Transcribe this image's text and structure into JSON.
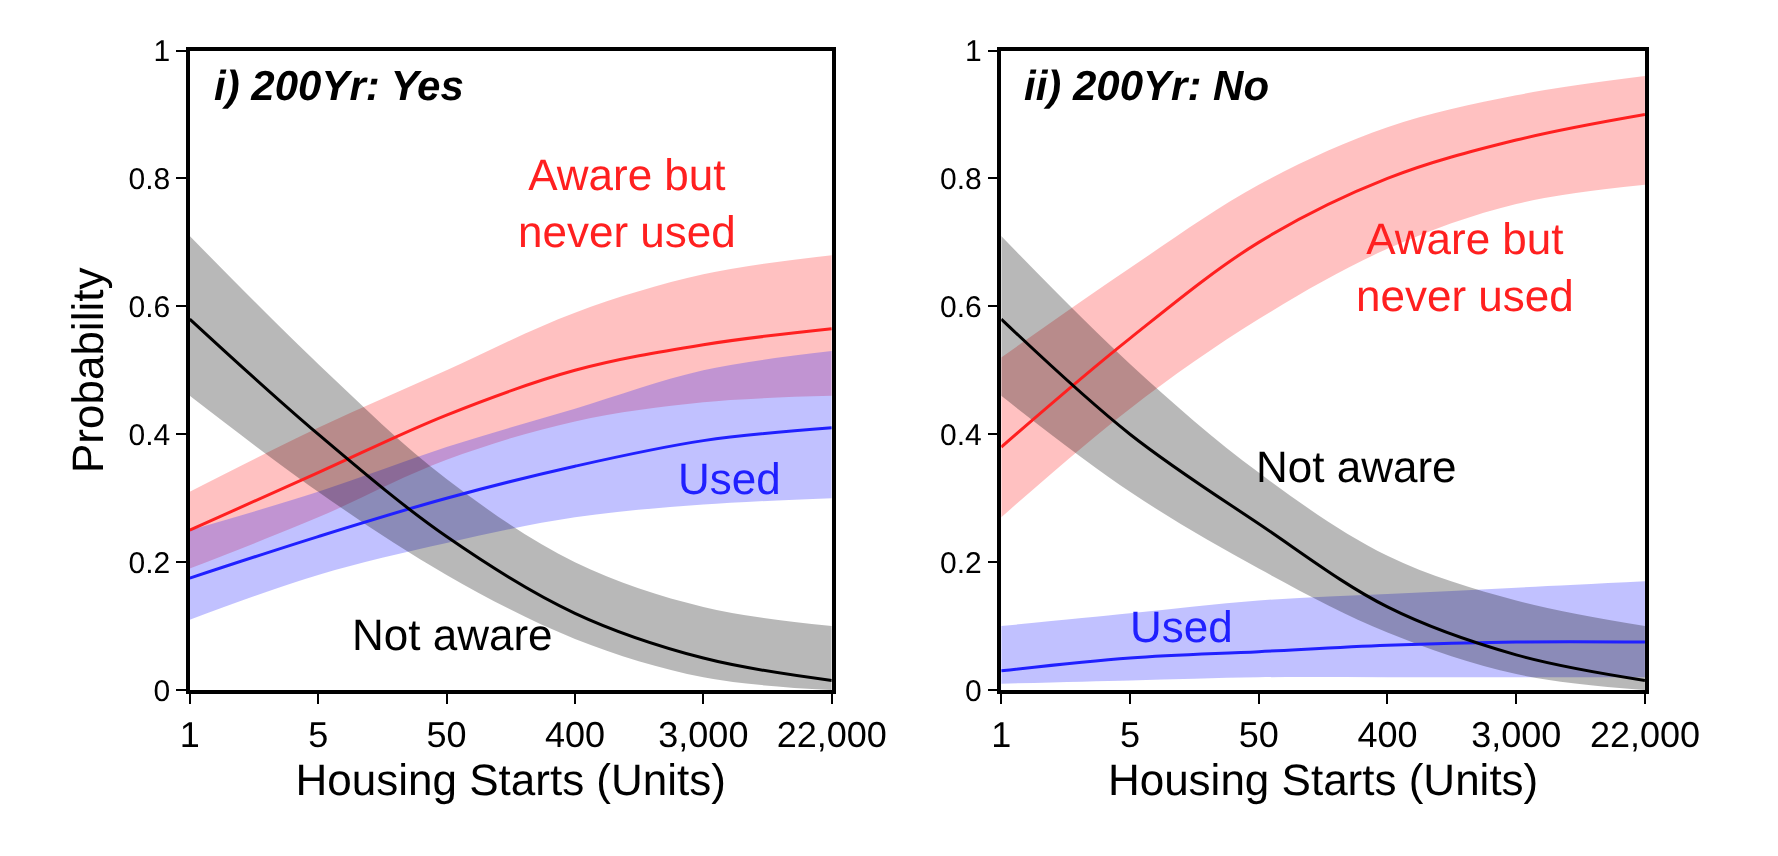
{
  "chart_data": [
    {
      "type": "line",
      "title": "i) 200Yr: Yes",
      "xlabel": "Housing Starts (Units)",
      "ylabel": "Probability",
      "categories": [
        "1",
        "5",
        "50",
        "400",
        "3,000",
        "22,000"
      ],
      "ylim": [
        0,
        1
      ],
      "yticks": [
        0,
        0.2,
        0.4,
        0.6,
        0.8,
        1
      ],
      "legend": false,
      "series": [
        {
          "name": "Aware but\nnever used",
          "color": "#ff2020",
          "values": [
            0.25,
            0.34,
            0.43,
            0.5,
            0.54,
            0.565
          ],
          "lower": [
            0.19,
            0.27,
            0.36,
            0.42,
            0.45,
            0.46
          ],
          "upper": [
            0.31,
            0.41,
            0.5,
            0.59,
            0.65,
            0.68
          ]
        },
        {
          "name": "Used",
          "color": "#2020ff",
          "values": [
            0.175,
            0.24,
            0.3,
            0.35,
            0.39,
            0.41
          ],
          "lower": [
            0.11,
            0.18,
            0.23,
            0.27,
            0.29,
            0.3
          ],
          "upper": [
            0.25,
            0.31,
            0.38,
            0.44,
            0.5,
            0.53
          ]
        },
        {
          "name": "Not aware",
          "color": "#000000",
          "values": [
            0.58,
            0.4,
            0.24,
            0.12,
            0.05,
            0.015
          ],
          "lower": [
            0.46,
            0.31,
            0.18,
            0.08,
            0.02,
            0.0
          ],
          "upper": [
            0.71,
            0.51,
            0.33,
            0.2,
            0.13,
            0.1
          ]
        }
      ]
    },
    {
      "type": "line",
      "title": "ii) 200Yr: No",
      "xlabel": "Housing Starts (Units)",
      "categories": [
        "1",
        "5",
        "50",
        "400",
        "3,000",
        "22,000"
      ],
      "ylim": [
        0,
        1
      ],
      "yticks": [
        0,
        0.2,
        0.4,
        0.6,
        0.8,
        1
      ],
      "legend": false,
      "series": [
        {
          "name": "Aware but\nnever used",
          "color": "#ff2020",
          "values": [
            0.38,
            0.55,
            0.7,
            0.8,
            0.86,
            0.9
          ],
          "lower": [
            0.27,
            0.44,
            0.58,
            0.69,
            0.76,
            0.79
          ],
          "upper": [
            0.52,
            0.66,
            0.79,
            0.88,
            0.93,
            0.96
          ]
        },
        {
          "name": "Used",
          "color": "#2020ff",
          "values": [
            0.03,
            0.05,
            0.06,
            0.07,
            0.075,
            0.075
          ],
          "lower": [
            0.01,
            0.015,
            0.02,
            0.02,
            0.02,
            0.02
          ],
          "upper": [
            0.1,
            0.12,
            0.14,
            0.15,
            0.16,
            0.17
          ]
        },
        {
          "name": "Not aware",
          "color": "#000000",
          "values": [
            0.58,
            0.4,
            0.26,
            0.13,
            0.055,
            0.015
          ],
          "lower": [
            0.46,
            0.31,
            0.19,
            0.09,
            0.025,
            0.0
          ],
          "upper": [
            0.71,
            0.51,
            0.34,
            0.21,
            0.14,
            0.1
          ]
        }
      ]
    }
  ]
}
